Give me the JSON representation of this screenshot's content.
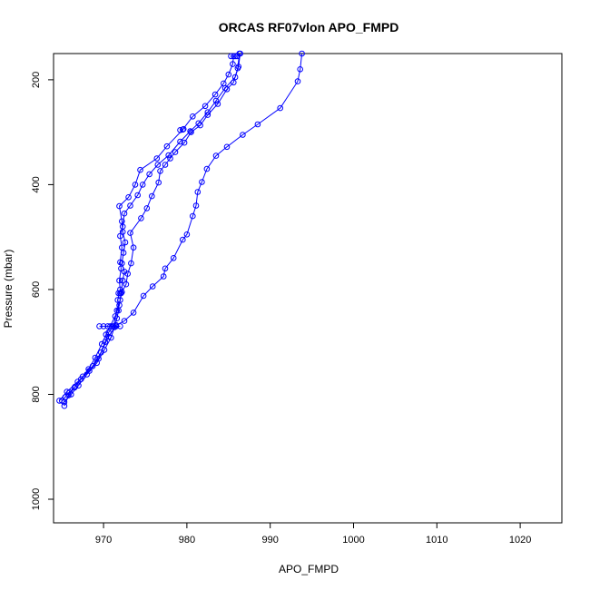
{
  "chart_data": {
    "type": "line",
    "title": "ORCAS RF07vlon APO_FMPD",
    "xlabel": "APO_FMPD",
    "ylabel": "Pressure (mbar)",
    "xlim": [
      964,
      1025
    ],
    "ylim": [
      1045,
      150
    ],
    "y_reversed": true,
    "x_ticks": [
      970,
      980,
      990,
      1000,
      1010,
      1020
    ],
    "y_ticks": [
      200,
      400,
      600,
      800,
      1000
    ],
    "marker": "open-circle",
    "line_color": "#0000ff",
    "grid": false,
    "series": [
      {
        "points": [
          [
            965.0,
            812
          ],
          [
            965.4,
            805
          ],
          [
            965.9,
            796
          ],
          [
            966.5,
            787
          ],
          [
            967.3,
            771
          ],
          [
            968.2,
            752
          ],
          [
            969.0,
            730
          ],
          [
            969.8,
            704
          ],
          [
            970.3,
            686
          ],
          [
            970.8,
            670
          ],
          [
            971.4,
            651
          ],
          [
            971.9,
            630
          ],
          [
            972.1,
            607
          ],
          [
            972.3,
            583
          ],
          [
            972.5,
            566
          ],
          [
            972.2,
            550
          ],
          [
            972.4,
            530
          ],
          [
            972.6,
            510
          ],
          [
            972.3,
            490
          ],
          [
            972.2,
            470
          ],
          [
            971.9,
            441
          ],
          [
            973.0,
            424
          ],
          [
            973.8,
            400
          ],
          [
            974.4,
            372
          ],
          [
            976.4,
            350
          ],
          [
            977.6,
            327
          ],
          [
            979.5,
            295
          ],
          [
            980.7,
            270
          ],
          [
            982.2,
            250
          ],
          [
            983.4,
            228
          ],
          [
            984.4,
            207
          ],
          [
            985.0,
            190
          ],
          [
            985.5,
            170
          ],
          [
            985.6,
            155
          ]
        ]
      },
      {
        "points": [
          [
            965.3,
            822
          ],
          [
            965.8,
            802
          ],
          [
            966.6,
            785
          ],
          [
            967.5,
            766
          ],
          [
            968.7,
            746
          ],
          [
            969.7,
            720
          ],
          [
            970.6,
            690
          ],
          [
            971.5,
            668
          ],
          [
            972.5,
            660
          ],
          [
            973.6,
            644
          ],
          [
            974.8,
            612
          ],
          [
            975.9,
            594
          ],
          [
            977.2,
            575
          ],
          [
            977.4,
            560
          ],
          [
            978.4,
            540
          ],
          [
            979.5,
            505
          ],
          [
            980.0,
            495
          ],
          [
            980.7,
            460
          ],
          [
            981.1,
            440
          ],
          [
            981.3,
            414
          ],
          [
            981.8,
            395
          ],
          [
            982.4,
            370
          ],
          [
            983.5,
            345
          ],
          [
            984.8,
            328
          ],
          [
            986.7,
            305
          ],
          [
            988.5,
            285
          ],
          [
            991.2,
            254
          ],
          [
            993.3,
            203
          ],
          [
            993.6,
            180
          ],
          [
            993.8,
            150
          ]
        ]
      },
      {
        "points": [
          [
            964.7,
            812
          ],
          [
            965.6,
            795
          ],
          [
            966.9,
            776
          ],
          [
            968.3,
            755
          ],
          [
            969.4,
            732
          ],
          [
            970.2,
            700
          ],
          [
            970.6,
            682
          ],
          [
            971.2,
            670
          ],
          [
            971.6,
            640
          ],
          [
            972.0,
            620
          ],
          [
            972.2,
            605
          ],
          [
            972.7,
            590
          ],
          [
            972.9,
            570
          ],
          [
            973.3,
            550
          ],
          [
            973.6,
            520
          ],
          [
            973.2,
            492
          ],
          [
            974.5,
            464
          ],
          [
            975.2,
            445
          ],
          [
            975.8,
            422
          ],
          [
            976.6,
            396
          ],
          [
            976.8,
            374
          ],
          [
            977.4,
            362
          ],
          [
            978.0,
            350
          ],
          [
            978.6,
            338
          ],
          [
            979.7,
            320
          ],
          [
            980.5,
            300
          ],
          [
            981.6,
            287
          ],
          [
            982.5,
            267
          ],
          [
            983.7,
            246
          ],
          [
            984.8,
            218
          ],
          [
            985.6,
            205
          ],
          [
            986.1,
            178
          ],
          [
            986.3,
            150
          ]
        ]
      },
      {
        "points": [
          [
            965.3,
            815
          ],
          [
            966.1,
            800
          ],
          [
            967.0,
            783
          ],
          [
            968.0,
            762
          ],
          [
            969.2,
            740
          ],
          [
            970.1,
            715
          ],
          [
            970.9,
            692
          ],
          [
            971.3,
            672
          ],
          [
            971.6,
            655
          ],
          [
            971.8,
            640
          ],
          [
            971.7,
            620
          ],
          [
            972.0,
            600
          ],
          [
            971.9,
            583
          ],
          [
            972.1,
            560
          ],
          [
            972.0,
            548
          ],
          [
            972.2,
            520
          ],
          [
            972.0,
            498
          ],
          [
            972.3,
            480
          ],
          [
            972.5,
            455
          ],
          [
            973.2,
            440
          ],
          [
            974.1,
            420
          ],
          [
            974.7,
            400
          ],
          [
            975.5,
            380
          ],
          [
            976.5,
            362
          ],
          [
            977.8,
            344
          ],
          [
            979.2,
            318
          ],
          [
            980.4,
            298
          ],
          [
            981.4,
            283
          ],
          [
            982.5,
            262
          ],
          [
            983.5,
            240
          ],
          [
            984.6,
            216
          ],
          [
            985.8,
            195
          ],
          [
            986.2,
            175
          ],
          [
            986.4,
            150
          ]
        ]
      },
      {
        "points": [
          [
            969.5,
            670
          ],
          [
            970.0,
            670
          ],
          [
            970.5,
            670
          ],
          [
            971.0,
            670
          ],
          [
            971.5,
            670
          ],
          [
            972.0,
            670
          ]
        ]
      },
      {
        "points": [
          [
            972.0,
            607
          ],
          [
            971.8,
            607
          ]
        ]
      },
      {
        "points": [
          [
            979.6,
            294
          ],
          [
            979.2,
            296
          ]
        ]
      },
      {
        "points": [
          [
            985.3,
            155
          ],
          [
            985.8,
            155
          ],
          [
            986.0,
            155
          ]
        ]
      }
    ]
  }
}
